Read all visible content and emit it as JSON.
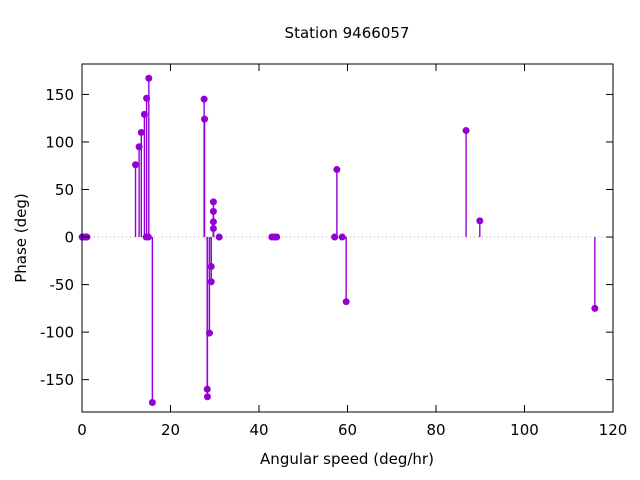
{
  "chart_data": {
    "type": "stem",
    "title": "Station 9466057",
    "xlabel": "Angular speed (deg/hr)",
    "ylabel": "Phase (deg)",
    "xlim": [
      0,
      120
    ],
    "ylim": [
      -184,
      182
    ],
    "xticks": [
      0,
      20,
      40,
      60,
      80,
      100,
      120
    ],
    "yticks": [
      -150,
      -100,
      -50,
      0,
      50,
      100,
      150
    ],
    "legend": "none",
    "grid": "dotted horizontal line at y=0 only",
    "colors": {
      "marker": "#9400D3",
      "zero_line": "#a8a8a8",
      "axis": "#000000",
      "background": "#ffffff",
      "text": "#000000"
    },
    "points": [
      {
        "x": 0.04,
        "y": 0
      },
      {
        "x": 0.08,
        "y": 0
      },
      {
        "x": 0.54,
        "y": 0
      },
      {
        "x": 1.02,
        "y": 0
      },
      {
        "x": 1.1,
        "y": 0
      },
      {
        "x": 12.1,
        "y": 76
      },
      {
        "x": 12.9,
        "y": 95
      },
      {
        "x": 13.4,
        "y": 110
      },
      {
        "x": 14.1,
        "y": 129
      },
      {
        "x": 14.6,
        "y": 146
      },
      {
        "x": 15.1,
        "y": 167
      },
      {
        "x": 14.5,
        "y": 0
      },
      {
        "x": 15.0,
        "y": 0
      },
      {
        "x": 15.9,
        "y": -174
      },
      {
        "x": 27.6,
        "y": 145
      },
      {
        "x": 27.7,
        "y": 124
      },
      {
        "x": 28.3,
        "y": -160
      },
      {
        "x": 28.35,
        "y": -168
      },
      {
        "x": 28.8,
        "y": -101
      },
      {
        "x": 29.2,
        "y": -31
      },
      {
        "x": 29.2,
        "y": -47
      },
      {
        "x": 29.7,
        "y": 37
      },
      {
        "x": 29.7,
        "y": 27
      },
      {
        "x": 29.7,
        "y": 16
      },
      {
        "x": 29.7,
        "y": 9
      },
      {
        "x": 31.0,
        "y": 0
      },
      {
        "x": 42.9,
        "y": 0
      },
      {
        "x": 43.5,
        "y": 0
      },
      {
        "x": 44.0,
        "y": 0
      },
      {
        "x": 57.1,
        "y": 0
      },
      {
        "x": 57.6,
        "y": 71
      },
      {
        "x": 58.8,
        "y": 0
      },
      {
        "x": 59.7,
        "y": -68
      },
      {
        "x": 86.8,
        "y": 112
      },
      {
        "x": 89.9,
        "y": 17
      },
      {
        "x": 115.9,
        "y": -75
      }
    ]
  }
}
